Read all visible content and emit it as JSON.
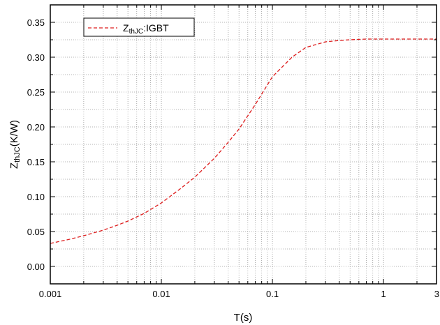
{
  "chart_data": {
    "type": "line",
    "x_scale": "log",
    "xlim": [
      0.001,
      3
    ],
    "ylim": [
      -0.025,
      0.375
    ],
    "x_ticks": [
      0.001,
      0.01,
      0.1,
      1,
      3
    ],
    "x_tick_labels": [
      "0.001",
      "0.01",
      "0.1",
      "1",
      "3"
    ],
    "y_ticks": [
      0.0,
      0.05,
      0.1,
      0.15,
      0.2,
      0.25,
      0.3,
      0.35
    ],
    "y_tick_labels": [
      "0.00",
      "0.05",
      "0.10",
      "0.15",
      "0.20",
      "0.25",
      "0.30",
      "0.35"
    ],
    "xlabel": "T(s)",
    "ylabel": {
      "main": "Z",
      "sub": "thJC",
      "suffix": "(K/W)"
    },
    "grid": true,
    "legend_position": "top-left",
    "series": [
      {
        "name": {
          "main": "Z",
          "sub": "thJC",
          "suffix": ":IGBT"
        },
        "color": "#dd1c1c",
        "line_style": "dashed",
        "x": [
          0.001,
          0.0015,
          0.002,
          0.003,
          0.004,
          0.005,
          0.007,
          0.01,
          0.015,
          0.02,
          0.03,
          0.04,
          0.05,
          0.07,
          0.1,
          0.15,
          0.2,
          0.3,
          0.4,
          0.5,
          0.7,
          1,
          1.5,
          2,
          3
        ],
        "y": [
          0.033,
          0.039,
          0.044,
          0.052,
          0.059,
          0.065,
          0.076,
          0.091,
          0.112,
          0.128,
          0.155,
          0.178,
          0.197,
          0.232,
          0.272,
          0.3,
          0.314,
          0.322,
          0.324,
          0.325,
          0.326,
          0.326,
          0.326,
          0.326,
          0.326
        ]
      }
    ]
  }
}
